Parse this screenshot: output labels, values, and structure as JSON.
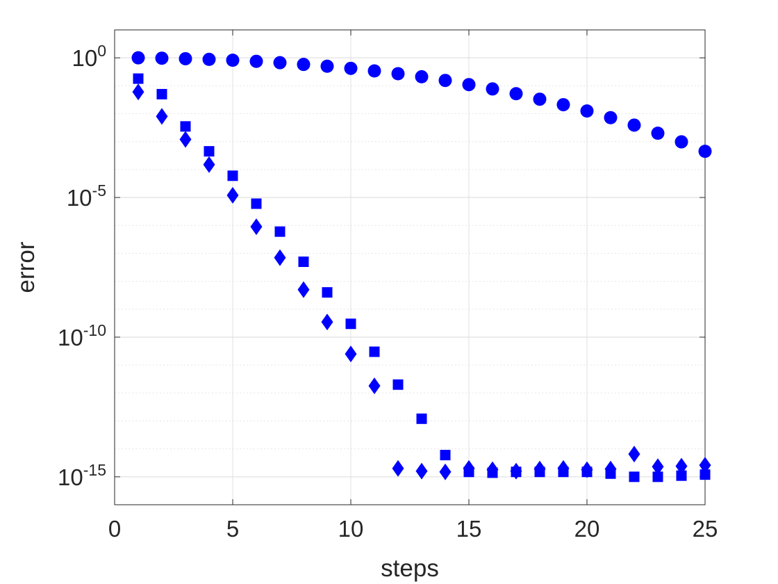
{
  "chart_data": {
    "type": "scatter",
    "title": "",
    "xlabel": "steps",
    "ylabel": "error",
    "xlim": [
      0,
      25
    ],
    "ylim": [
      1e-16,
      10
    ],
    "yscale": "log",
    "grid": true,
    "minor_grid_y": true,
    "legend": "none",
    "x_ticks": [
      0,
      5,
      10,
      15,
      20,
      25
    ],
    "x_tick_labels": [
      "0",
      "5",
      "10",
      "15",
      "20",
      "25"
    ],
    "y_ticks": [
      {
        "value": 1e-15,
        "base": "10",
        "exponent": "-15"
      },
      {
        "value": 1e-10,
        "base": "10",
        "exponent": "-10"
      },
      {
        "value": 1e-05,
        "base": "10",
        "exponent": "-5"
      },
      {
        "value": 1,
        "base": "10",
        "exponent": "0"
      }
    ],
    "colors": {
      "marker": "#0000ff",
      "axis": "#262626",
      "grid": "#e0e0e0"
    },
    "x": [
      1,
      2,
      3,
      4,
      5,
      6,
      7,
      8,
      9,
      10,
      11,
      12,
      13,
      14,
      15,
      16,
      17,
      18,
      19,
      20,
      21,
      22,
      23,
      24,
      25
    ],
    "series": [
      {
        "marker": "circle",
        "values": [
          1.0,
          0.97,
          0.93,
          0.88,
          0.82,
          0.75,
          0.67,
          0.58,
          0.5,
          0.42,
          0.34,
          0.27,
          0.21,
          0.155,
          0.11,
          0.077,
          0.052,
          0.033,
          0.021,
          0.0125,
          0.0072,
          0.0039,
          0.002,
          0.00098,
          0.00045
        ]
      },
      {
        "marker": "square",
        "values": [
          0.18,
          0.05,
          0.0035,
          0.00045,
          6e-05,
          6e-06,
          6e-07,
          5e-08,
          4e-09,
          3e-10,
          3e-11,
          2e-12,
          1.2e-13,
          6e-15,
          1.5e-15,
          1.4e-15,
          1.5e-15,
          1.5e-15,
          1.5e-15,
          1.5e-15,
          1.3e-15,
          1e-15,
          1e-15,
          1.1e-15,
          1.2e-15
        ]
      },
      {
        "marker": "diamond",
        "values": [
          0.06,
          0.008,
          0.0012,
          0.00015,
          1.2e-05,
          9e-07,
          7e-08,
          5e-09,
          3.5e-10,
          2.5e-11,
          1.8e-12,
          2e-15,
          1.6e-15,
          1.5e-15,
          2e-15,
          1.8e-15,
          1.6e-15,
          1.9e-15,
          2e-15,
          1.8e-15,
          1.9e-15,
          6.5e-15,
          2.3e-15,
          2.4e-15,
          2.6e-15
        ]
      }
    ]
  }
}
